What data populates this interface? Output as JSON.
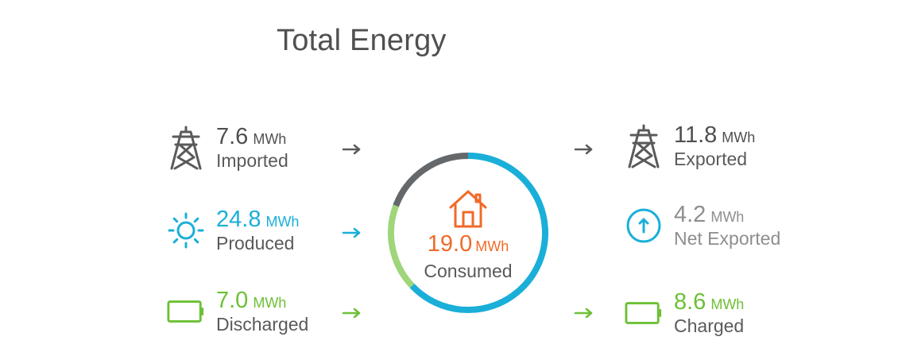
{
  "title": "Total Energy",
  "colors": {
    "dark": "#4f4f4f",
    "blue": "#1aafd8",
    "green": "#6cc036",
    "orange": "#f06a28",
    "gray": "#8e8e8e"
  },
  "left": {
    "imported": {
      "value": "7.6",
      "unit": "MWh",
      "label": "Imported",
      "icon": "power-tower-icon"
    },
    "produced": {
      "value": "24.8",
      "unit": "MWh",
      "label": "Produced",
      "icon": "sun-icon"
    },
    "discharged": {
      "value": "7.0",
      "unit": "MWh",
      "label": "Discharged",
      "icon": "battery-icon"
    }
  },
  "center": {
    "value": "19.0",
    "unit": "MWh",
    "label": "Consumed",
    "icon": "house-icon"
  },
  "right": {
    "exported": {
      "value": "11.8",
      "unit": "MWh",
      "label": "Exported",
      "icon": "power-tower-icon"
    },
    "net_exported": {
      "value": "4.2",
      "unit": "MWh",
      "label": "Net Exported",
      "icon": "up-arrow-circle-icon"
    },
    "charged": {
      "value": "8.6",
      "unit": "MWh",
      "label": "Charged",
      "icon": "battery-icon"
    }
  },
  "donut": {
    "segments": [
      {
        "source": "Imported",
        "value": 7.6,
        "color": "#65686b"
      },
      {
        "source": "Produced",
        "value": 24.8,
        "color": "#1aafd8"
      },
      {
        "source": "Discharged",
        "value": 7.0,
        "color": "#9fd67a"
      }
    ]
  }
}
